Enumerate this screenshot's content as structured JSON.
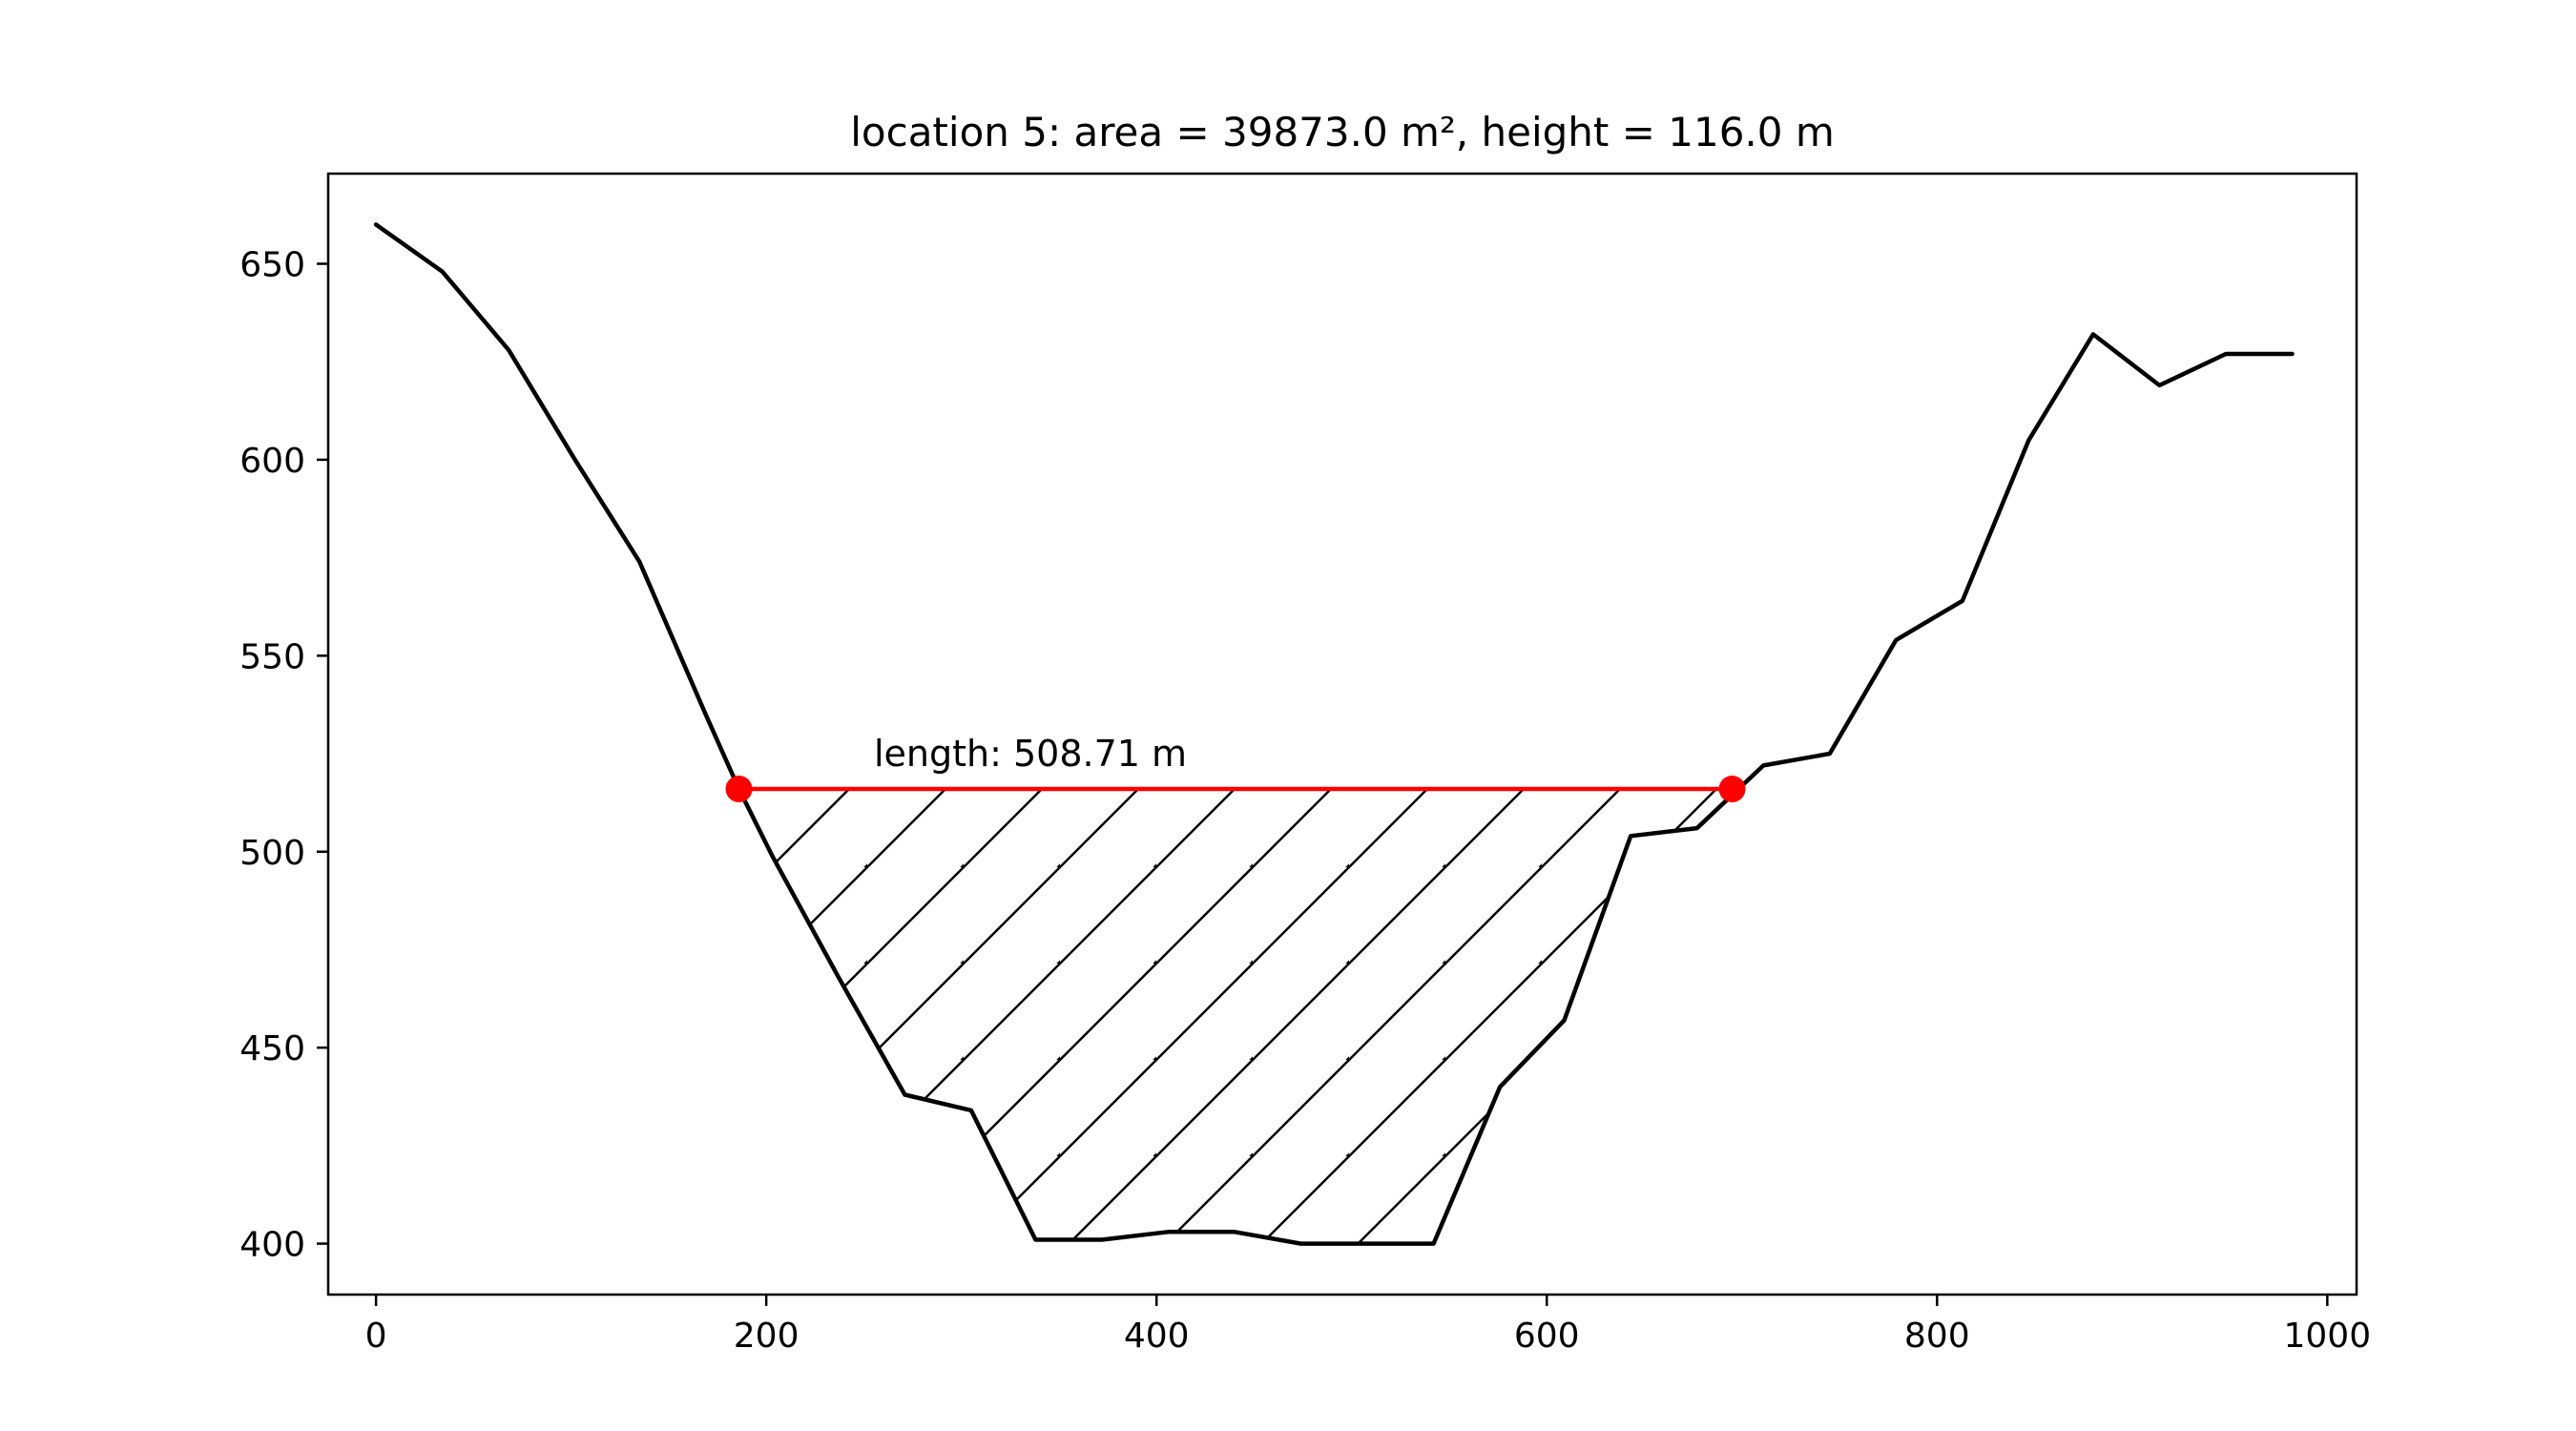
{
  "chart_data": {
    "type": "line",
    "title": "location 5: area = 39873.0 m², height = 116.0 m",
    "xlabel": "",
    "ylabel": "",
    "xlim": [
      -24.5,
      1015
    ],
    "ylim": [
      387,
      673
    ],
    "x_ticks": [
      0,
      200,
      400,
      600,
      800,
      1000
    ],
    "y_ticks": [
      400,
      450,
      500,
      550,
      600,
      650
    ],
    "grid": false,
    "series": [
      {
        "color": "#000000",
        "x": [
          0,
          34,
          68,
          102,
          135,
          169,
          186,
          203,
          237,
          271,
          305,
          338,
          372,
          406,
          440,
          474,
          508,
          542,
          576,
          609,
          643,
          677,
          711,
          745,
          779,
          813,
          847,
          880,
          914,
          948,
          982
        ],
        "y": [
          660,
          648,
          628,
          600,
          574,
          535,
          516,
          499,
          468,
          438,
          434,
          401,
          401,
          403,
          403,
          400,
          400,
          400,
          440,
          457,
          504,
          506,
          522,
          525,
          554,
          564,
          605,
          632,
          619,
          627,
          627
        ]
      }
    ],
    "water_level": {
      "color": "#ff0000",
      "y": 516,
      "x_start": 186,
      "x_end": 695,
      "label": "length: 508.71 m"
    },
    "hatch_fill": {
      "pattern": "diagonal",
      "color": "#000000"
    }
  }
}
